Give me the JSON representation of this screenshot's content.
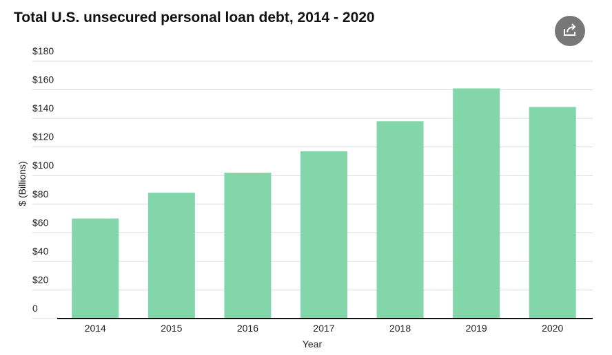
{
  "chart_data": {
    "type": "bar",
    "title": "Total U.S. unsecured personal loan debt, 2014 - 2020",
    "x_label": "Year",
    "y_label": "$ (Billions)",
    "categories": [
      "2014",
      "2015",
      "2016",
      "2017",
      "2018",
      "2019",
      "2020"
    ],
    "values": [
      70,
      88,
      102,
      117,
      138,
      161,
      148
    ],
    "color": "#82d6a9",
    "ylim": [
      0,
      180
    ],
    "yticks": [
      0,
      {
        "value": 20,
        "label": "$20"
      },
      {
        "value": 40,
        "label": "$40"
      },
      {
        "value": 60,
        "label": "$60"
      },
      {
        "value": 80,
        "label": "$80"
      },
      {
        "value": 100,
        "label": "$100"
      },
      {
        "value": 120,
        "label": "$120"
      },
      {
        "value": 140,
        "label": "$140"
      },
      {
        "value": 160,
        "label": "$160"
      },
      {
        "value": 180,
        "label": "$180"
      }
    ],
    "grid": true
  }
}
